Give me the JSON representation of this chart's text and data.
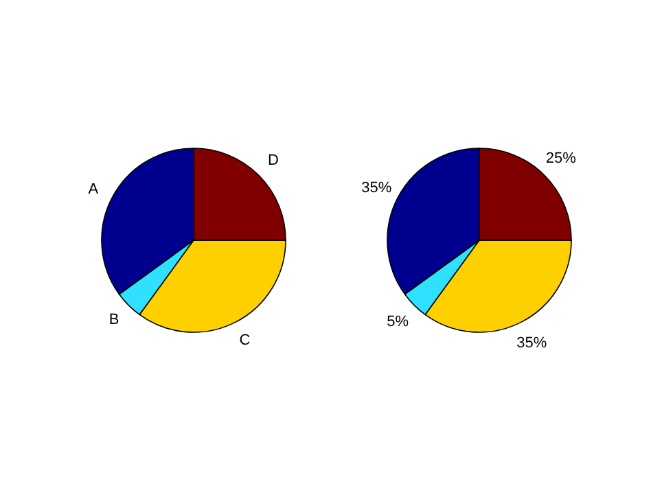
{
  "chart_data": [
    {
      "type": "pie",
      "categories": [
        "A",
        "B",
        "C",
        "D"
      ],
      "values": [
        35,
        5,
        35,
        25
      ],
      "colors": [
        "#00008f",
        "#30e0ff",
        "#ffd000",
        "#800000"
      ]
    },
    {
      "type": "pie",
      "categories": [
        null,
        null,
        null,
        null
      ],
      "values": [
        35,
        5,
        35,
        25
      ],
      "colors": [
        "#00008f",
        "#30e0ff",
        "#ffd000",
        "#800000"
      ],
      "value_labels": [
        "35%",
        "5%",
        "35%",
        "25%"
      ]
    }
  ]
}
